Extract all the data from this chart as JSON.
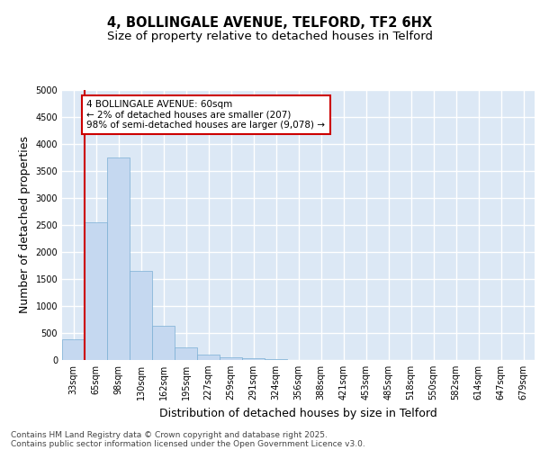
{
  "title_line1": "4, BOLLINGALE AVENUE, TELFORD, TF2 6HX",
  "title_line2": "Size of property relative to detached houses in Telford",
  "xlabel": "Distribution of detached houses by size in Telford",
  "ylabel": "Number of detached properties",
  "categories": [
    "33sqm",
    "65sqm",
    "98sqm",
    "130sqm",
    "162sqm",
    "195sqm",
    "227sqm",
    "259sqm",
    "291sqm",
    "324sqm",
    "356sqm",
    "388sqm",
    "421sqm",
    "453sqm",
    "485sqm",
    "518sqm",
    "550sqm",
    "582sqm",
    "614sqm",
    "647sqm",
    "679sqm"
  ],
  "values": [
    380,
    2550,
    3750,
    1650,
    630,
    240,
    100,
    55,
    35,
    15,
    0,
    0,
    0,
    0,
    0,
    0,
    0,
    0,
    0,
    0,
    0
  ],
  "bar_color": "#c5d8f0",
  "bar_edge_color": "#7aafd4",
  "vline_color": "#cc0000",
  "annotation_text": "4 BOLLINGALE AVENUE: 60sqm\n← 2% of detached houses are smaller (207)\n98% of semi-detached houses are larger (9,078) →",
  "annotation_box_facecolor": "#ffffff",
  "annotation_box_edgecolor": "#cc0000",
  "ylim": [
    0,
    5000
  ],
  "yticks": [
    0,
    500,
    1000,
    1500,
    2000,
    2500,
    3000,
    3500,
    4000,
    4500,
    5000
  ],
  "plot_bg_color": "#dce8f5",
  "fig_bg_color": "#ffffff",
  "grid_color": "#ffffff",
  "footer_line1": "Contains HM Land Registry data © Crown copyright and database right 2025.",
  "footer_line2": "Contains public sector information licensed under the Open Government Licence v3.0.",
  "title_fontsize": 10.5,
  "subtitle_fontsize": 9.5,
  "axis_label_fontsize": 9,
  "tick_fontsize": 7,
  "annotation_fontsize": 7.5,
  "footer_fontsize": 6.5
}
